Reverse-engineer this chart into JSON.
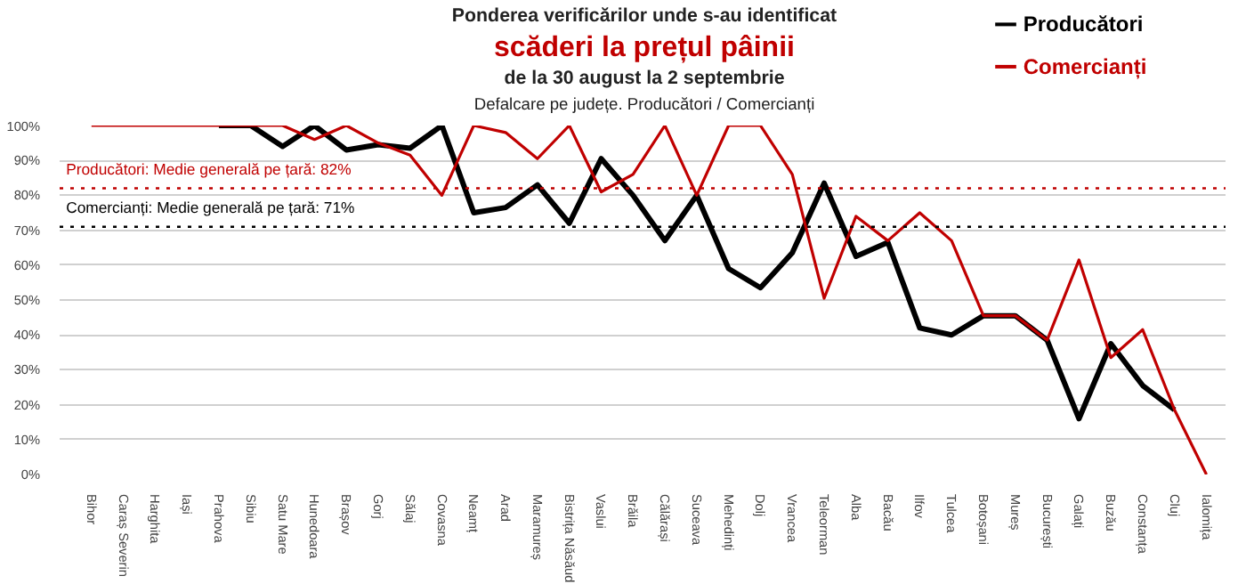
{
  "chart_data": {
    "type": "line",
    "title": "Ponderea verificărilor unde s-au identificat",
    "subtitle": "scăderi la prețul pâinii",
    "annotations": [
      "de la 30 august la 2 septembrie",
      "Defalcare pe județe. Producători / Comercianți"
    ],
    "categories": [
      "Bihor",
      "Caraș Severin",
      "Harghita",
      "Iași",
      "Prahova",
      "Sibiu",
      "Satu Mare",
      "Hunedoara",
      "Brașov",
      "Gorj",
      "Sălaj",
      "Covasna",
      "Neamț",
      "Arad",
      "Maramureș",
      "Bistrița Năsăud",
      "Vaslui",
      "Brăila",
      "Călărași",
      "Suceava",
      "Mehedinți",
      "Dolj",
      "Vrancea",
      "Teleorman",
      "Alba",
      "Bacău",
      "Ilfov",
      "Tulcea",
      "Botoșani",
      "Mureș",
      "București",
      "Galați",
      "Buzău",
      "Constanța",
      "Cluj",
      "Ialomița"
    ],
    "series": [
      {
        "name": "Producători",
        "color": "#000000",
        "values": [
          null,
          null,
          null,
          null,
          100,
          100,
          94,
          100,
          93,
          94.5,
          93.5,
          100,
          75,
          76.5,
          83,
          72,
          90.5,
          80,
          67,
          80,
          59,
          53.5,
          63.5,
          83.5,
          62.5,
          66.5,
          42,
          40,
          45.5,
          45.5,
          38.5,
          16,
          37.5,
          25.5,
          18.5,
          null
        ]
      },
      {
        "name": "Comercianți",
        "color": "#c00000",
        "values": [
          100,
          100,
          100,
          100,
          100,
          100,
          100,
          96,
          100,
          95,
          91.5,
          80,
          100,
          98,
          90.5,
          100,
          81,
          86,
          100,
          80,
          100,
          100,
          86,
          50.5,
          74,
          67,
          75,
          67,
          45.5,
          45.5,
          38.5,
          61.5,
          33.5,
          41.5,
          18.5,
          0
        ]
      }
    ],
    "ylim": [
      0,
      100
    ],
    "yticks": [
      {
        "value": 0,
        "label": "0%"
      },
      {
        "value": 10,
        "label": "10%"
      },
      {
        "value": 20,
        "label": "20%"
      },
      {
        "value": 30,
        "label": "30%"
      },
      {
        "value": 40,
        "label": "40%"
      },
      {
        "value": 50,
        "label": "50%"
      },
      {
        "value": 60,
        "label": "60%"
      },
      {
        "value": 70,
        "label": "70%"
      },
      {
        "value": 80,
        "label": "80%"
      },
      {
        "value": 90,
        "label": "90%"
      },
      {
        "value": 100,
        "label": "100%"
      }
    ],
    "ref_lines": [
      {
        "axis": "y",
        "value": 82,
        "label": "Producători: Medie generală pe țară: 82%",
        "color": "#c00000",
        "line_style": "dotted"
      },
      {
        "axis": "y",
        "value": 71,
        "label": "Comercianți: Medie generală pe țară: 71%",
        "color": "#000000",
        "line_style": "dotted"
      }
    ],
    "grid": "y",
    "legend": "top right",
    "marker": "none",
    "line_style": "solid"
  }
}
